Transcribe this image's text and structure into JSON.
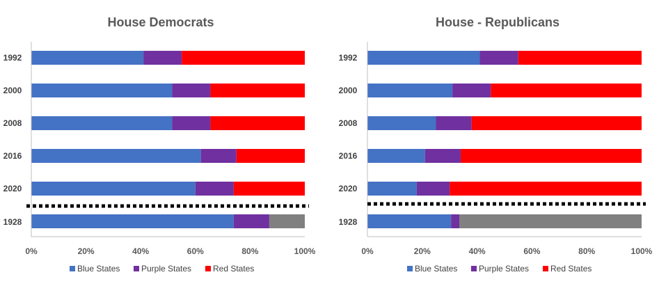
{
  "colors": {
    "blue": "#4472C4",
    "purple": "#7030A0",
    "red": "#FF0000",
    "gray": "#808080",
    "axis": "#BFBFBF",
    "separator": "#000000"
  },
  "chart_data": [
    {
      "type": "bar",
      "stacked": "100%",
      "orientation": "horizontal",
      "title": "House Democrats",
      "categories": [
        "1992",
        "2000",
        "2008",
        "2016",
        "2020",
        "1928"
      ],
      "series": [
        {
          "name": "Blue States",
          "color": "#4472C4",
          "values": [
            41,
            51.5,
            51.5,
            62,
            60,
            74
          ]
        },
        {
          "name": "Purple States",
          "color": "#7030A0",
          "values": [
            14,
            14,
            14,
            13,
            14,
            13
          ]
        },
        {
          "name": "Red States",
          "color": "#FF0000",
          "values": [
            45,
            34.5,
            34.5,
            25,
            26,
            0
          ]
        },
        {
          "name": "",
          "color": "#808080",
          "values": [
            0,
            0,
            0,
            0,
            0,
            13
          ]
        }
      ],
      "x_ticks": [
        "0%",
        "20%",
        "40%",
        "60%",
        "80%",
        "100%"
      ],
      "xlim": [
        0,
        100
      ],
      "separator_after_category": "2020",
      "legend": [
        "Blue States",
        "Purple States",
        "Red States"
      ],
      "legend_position": "bottom",
      "grid": false
    },
    {
      "type": "bar",
      "stacked": "100%",
      "orientation": "horizontal",
      "title": "House - Republicans",
      "categories": [
        "1992",
        "2000",
        "2008",
        "2016",
        "2020",
        "1928"
      ],
      "series": [
        {
          "name": "Blue States",
          "color": "#4472C4",
          "values": [
            41,
            31,
            25,
            21,
            18,
            30.5
          ]
        },
        {
          "name": "Purple States",
          "color": "#7030A0",
          "values": [
            14,
            14,
            13,
            13,
            12,
            3
          ]
        },
        {
          "name": "Red States",
          "color": "#FF0000",
          "values": [
            45,
            55,
            62,
            66,
            70,
            0
          ]
        },
        {
          "name": "",
          "color": "#808080",
          "values": [
            0,
            0,
            0,
            0,
            0,
            66.5
          ]
        }
      ],
      "x_ticks": [
        "0%",
        "20%",
        "40%",
        "60%",
        "80%",
        "100%"
      ],
      "xlim": [
        0,
        100
      ],
      "separator_after_category": "2020",
      "legend": [
        "Blue States",
        "Purple States",
        "Red States"
      ],
      "legend_position": "bottom",
      "grid": false
    }
  ]
}
